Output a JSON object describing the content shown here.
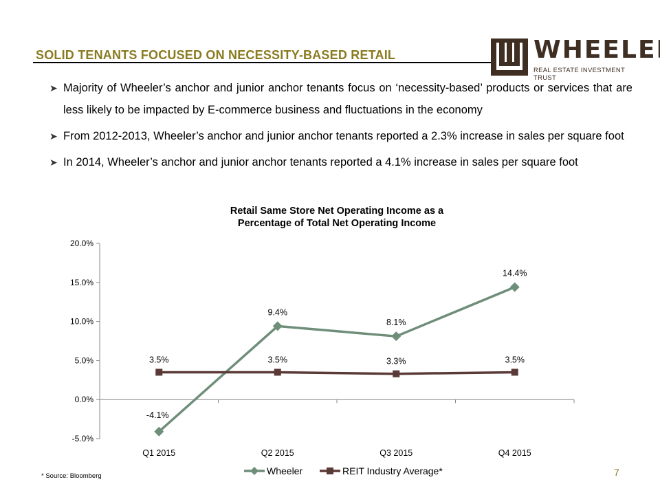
{
  "header": {
    "title": "SOLID TENANTS FOCUSED ON NECESSITY-BASED RETAIL",
    "logo_name": "WHEELER",
    "logo_subtitle": "REAL ESTATE INVESTMENT TRUST",
    "brand_color": "#8a7a20",
    "logo_color": "#3f2e22"
  },
  "bullets": [
    "Majority of Wheeler’s anchor and junior anchor tenants focus on ‘necessity-based’ products or services that are less likely to be impacted by E-commerce business and fluctuations in the economy",
    "From 2012-2013, Wheeler’s anchor and junior anchor tenants reported a 2.3% increase in sales per square foot",
    "In 2014, Wheeler’s anchor and junior anchor tenants reported a 4.1% increase in sales per square foot"
  ],
  "chart_data": {
    "type": "line",
    "title_line1": "Retail Same Store Net Operating Income as a",
    "title_line2": "Percentage of Total Net Operating Income",
    "categories": [
      "Q1 2015",
      "Q2 2015",
      "Q3 2015",
      "Q4 2015"
    ],
    "ylim": [
      -5.0,
      20.0
    ],
    "yticks": [
      -5.0,
      0.0,
      5.0,
      10.0,
      15.0,
      20.0
    ],
    "ytick_labels": [
      "-5.0%",
      "0.0%",
      "5.0%",
      "10.0%",
      "15.0%",
      "20.0%"
    ],
    "grid": false,
    "legend_position": "bottom",
    "series": [
      {
        "name": "Wheeler",
        "values": [
          -4.1,
          9.4,
          8.1,
          14.4
        ],
        "labels": [
          "-4.1%",
          "9.4%",
          "8.1%",
          "14.4%"
        ],
        "color": "#6e8e7a",
        "marker": "diamond"
      },
      {
        "name": "REIT Industry Average*",
        "values": [
          3.5,
          3.5,
          3.3,
          3.5
        ],
        "labels": [
          "3.5%",
          "3.5%",
          "3.3%",
          "3.5%"
        ],
        "color": "#5a3a36",
        "marker": "square"
      }
    ]
  },
  "footer": {
    "footnote": "* Source: Bloomberg",
    "page_number": "7"
  }
}
